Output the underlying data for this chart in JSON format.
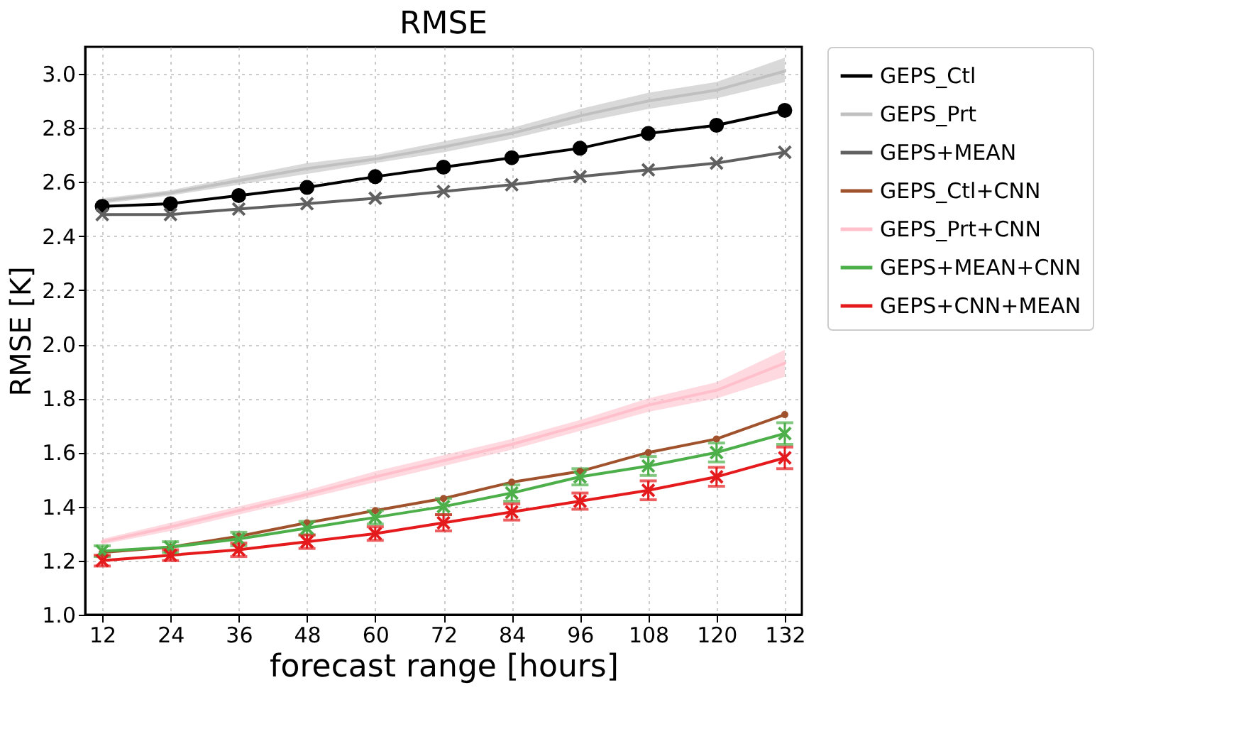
{
  "chart_data": {
    "type": "line",
    "title": "RMSE",
    "xlabel": "forecast range [hours]",
    "ylabel": "RMSE [K]",
    "x": [
      12,
      24,
      36,
      48,
      60,
      72,
      84,
      96,
      108,
      120,
      132
    ],
    "xlim": [
      9,
      135
    ],
    "xticks": [
      12,
      24,
      36,
      48,
      60,
      72,
      84,
      96,
      108,
      120,
      132
    ],
    "ylim": [
      1.0,
      3.1
    ],
    "yticks": [
      {
        "value": 1.0,
        "label": "1.0"
      },
      {
        "value": 1.2,
        "label": "1.2"
      },
      {
        "value": 1.4,
        "label": "1.4"
      },
      {
        "value": 1.6,
        "label": "1.6"
      },
      {
        "value": 1.8,
        "label": "1.8"
      },
      {
        "value": 2.0,
        "label": "2.0"
      },
      {
        "value": 2.2,
        "label": "2.2"
      },
      {
        "value": 2.4,
        "label": "2.4"
      },
      {
        "value": 2.6,
        "label": "2.6"
      },
      {
        "value": 2.8,
        "label": "2.8"
      },
      {
        "value": 3.0,
        "label": "3.0"
      }
    ],
    "grid": true,
    "legend": "top right",
    "line_style": "solid",
    "series": [
      {
        "name": "GEPS_Ctl",
        "color": "#000000",
        "marker": "circle",
        "values": [
          2.51,
          2.52,
          2.55,
          2.58,
          2.62,
          2.655,
          2.69,
          2.725,
          2.78,
          2.81,
          2.865
        ]
      },
      {
        "name": "GEPS_Prt",
        "color": "#c0c0c0",
        "marker": "none",
        "values": [
          2.53,
          2.56,
          2.605,
          2.65,
          2.685,
          2.73,
          2.78,
          2.845,
          2.9,
          2.94,
          3.01
        ],
        "lower": [
          2.52,
          2.55,
          2.59,
          2.63,
          2.67,
          2.71,
          2.76,
          2.82,
          2.87,
          2.91,
          2.97
        ],
        "upper": [
          2.54,
          2.57,
          2.62,
          2.67,
          2.7,
          2.75,
          2.8,
          2.87,
          2.93,
          2.97,
          3.06
        ]
      },
      {
        "name": "GEPS+MEAN",
        "color": "#606060",
        "marker": "cross",
        "values": [
          2.48,
          2.48,
          2.5,
          2.52,
          2.54,
          2.565,
          2.59,
          2.62,
          2.645,
          2.67,
          2.71
        ]
      },
      {
        "name": "GEPS_Ctl+CNN",
        "color": "#a0522d",
        "marker": "circle",
        "values": [
          1.23,
          1.25,
          1.29,
          1.34,
          1.385,
          1.43,
          1.49,
          1.53,
          1.6,
          1.65,
          1.74
        ]
      },
      {
        "name": "GEPS_Prt+CNN",
        "color": "#ffc0cb",
        "marker": "none",
        "values": [
          1.27,
          1.325,
          1.385,
          1.445,
          1.51,
          1.57,
          1.63,
          1.7,
          1.775,
          1.83,
          1.93
        ],
        "lower": [
          1.26,
          1.31,
          1.37,
          1.43,
          1.49,
          1.55,
          1.61,
          1.68,
          1.75,
          1.8,
          1.88
        ],
        "upper": [
          1.28,
          1.34,
          1.4,
          1.46,
          1.53,
          1.59,
          1.65,
          1.72,
          1.8,
          1.86,
          1.98
        ]
      },
      {
        "name": "GEPS+MEAN+CNN",
        "color": "#4daf4a",
        "marker": "cross",
        "values": [
          1.235,
          1.25,
          1.28,
          1.32,
          1.36,
          1.4,
          1.45,
          1.51,
          1.55,
          1.6,
          1.67
        ],
        "errors": [
          0.02,
          0.02,
          0.025,
          0.025,
          0.025,
          0.03,
          0.03,
          0.03,
          0.035,
          0.035,
          0.04
        ]
      },
      {
        "name": "GEPS+CNN+MEAN",
        "color": "#e41a1c",
        "marker": "cross",
        "values": [
          1.2,
          1.22,
          1.24,
          1.27,
          1.3,
          1.34,
          1.38,
          1.42,
          1.46,
          1.51,
          1.58
        ],
        "errors": [
          0.02,
          0.02,
          0.025,
          0.025,
          0.025,
          0.03,
          0.03,
          0.03,
          0.035,
          0.035,
          0.04
        ]
      }
    ]
  }
}
